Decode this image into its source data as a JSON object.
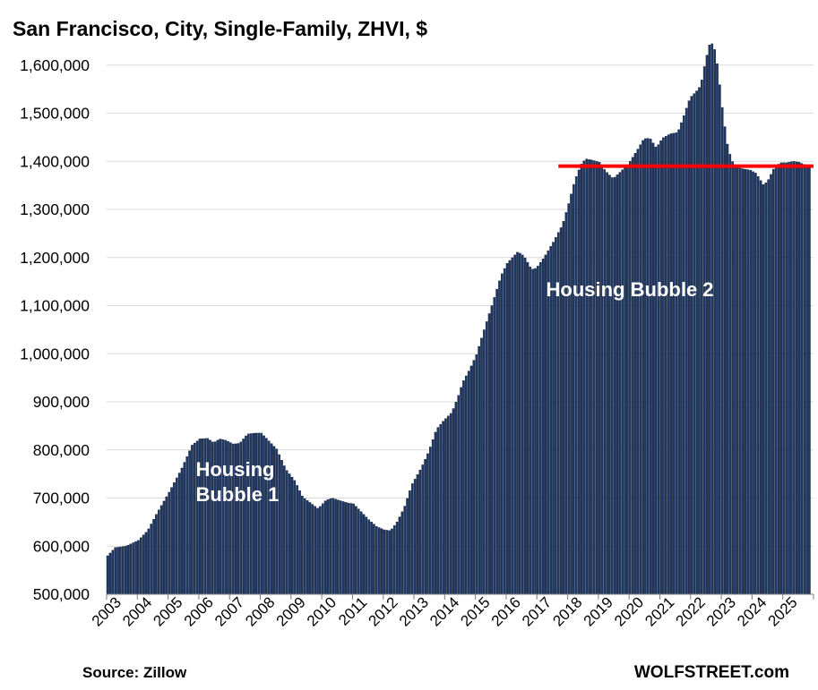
{
  "chart_data": {
    "type": "bar",
    "title": "San Francisco, City, Single-Family, ZHVI, $",
    "ylim": [
      500000,
      1650000
    ],
    "yticks": [
      "500,000",
      "600,000",
      "700,000",
      "800,000",
      "900,000",
      "1,000,000",
      "1,100,000",
      "1,200,000",
      "1,300,000",
      "1,400,000",
      "1,500,000",
      "1,600,000"
    ],
    "ytick_values": [
      500000,
      600000,
      700000,
      800000,
      900000,
      1000000,
      1100000,
      1200000,
      1300000,
      1400000,
      1500000,
      1600000
    ],
    "xticks": [
      "2003",
      "2004",
      "2005",
      "2006",
      "2007",
      "2008",
      "2009",
      "2010",
      "2011",
      "2012",
      "2013",
      "2014",
      "2015",
      "2016",
      "2017",
      "2018",
      "2019",
      "2020",
      "2021",
      "2022",
      "2023",
      "2024",
      "2025"
    ],
    "grid": true,
    "legend": "none",
    "bar_color": "#1f3864",
    "reference_line": {
      "value": 1390000,
      "color": "#ff0000",
      "from_year": 2017.7
    },
    "annotations": [
      {
        "text_lines": [
          "Housing",
          "Bubble 1"
        ],
        "x_year": 2005.9,
        "y": 720000
      },
      {
        "text_lines": [
          "Housing Bubble 2"
        ],
        "x_year": 2017.3,
        "y": 1120000
      }
    ],
    "anchors": [
      [
        2003.0,
        580000
      ],
      [
        2003.25,
        597000
      ],
      [
        2003.6,
        600000
      ],
      [
        2004.0,
        612000
      ],
      [
        2004.3,
        632000
      ],
      [
        2004.6,
        668000
      ],
      [
        2005.0,
        712000
      ],
      [
        2005.4,
        760000
      ],
      [
        2005.75,
        810000
      ],
      [
        2006.0,
        823000
      ],
      [
        2006.25,
        824000
      ],
      [
        2006.45,
        815000
      ],
      [
        2006.65,
        823000
      ],
      [
        2006.85,
        820000
      ],
      [
        2007.1,
        812000
      ],
      [
        2007.3,
        814000
      ],
      [
        2007.55,
        833000
      ],
      [
        2007.8,
        835000
      ],
      [
        2008.0,
        835000
      ],
      [
        2008.2,
        822000
      ],
      [
        2008.5,
        802000
      ],
      [
        2008.8,
        760000
      ],
      [
        2009.1,
        735000
      ],
      [
        2009.35,
        702000
      ],
      [
        2009.6,
        690000
      ],
      [
        2009.85,
        678000
      ],
      [
        2010.1,
        695000
      ],
      [
        2010.3,
        700000
      ],
      [
        2010.55,
        695000
      ],
      [
        2010.8,
        690000
      ],
      [
        2011.0,
        688000
      ],
      [
        2011.2,
        675000
      ],
      [
        2011.5,
        655000
      ],
      [
        2011.75,
        641000
      ],
      [
        2012.0,
        634000
      ],
      [
        2012.2,
        632000
      ],
      [
        2012.4,
        648000
      ],
      [
        2012.65,
        680000
      ],
      [
        2012.9,
        728000
      ],
      [
        2013.2,
        762000
      ],
      [
        2013.45,
        797000
      ],
      [
        2013.7,
        843000
      ],
      [
        2013.95,
        862000
      ],
      [
        2014.2,
        878000
      ],
      [
        2014.4,
        910000
      ],
      [
        2014.55,
        940000
      ],
      [
        2014.8,
        970000
      ],
      [
        2015.0,
        998000
      ],
      [
        2015.3,
        1060000
      ],
      [
        2015.55,
        1110000
      ],
      [
        2015.8,
        1162000
      ],
      [
        2016.0,
        1188000
      ],
      [
        2016.2,
        1202000
      ],
      [
        2016.35,
        1212000
      ],
      [
        2016.55,
        1203000
      ],
      [
        2016.8,
        1175000
      ],
      [
        2016.95,
        1178000
      ],
      [
        2017.2,
        1200000
      ],
      [
        2017.5,
        1232000
      ],
      [
        2017.8,
        1268000
      ],
      [
        2018.0,
        1312000
      ],
      [
        2018.2,
        1360000
      ],
      [
        2018.4,
        1393000
      ],
      [
        2018.55,
        1405000
      ],
      [
        2018.8,
        1402000
      ],
      [
        2019.0,
        1398000
      ],
      [
        2019.2,
        1380000
      ],
      [
        2019.45,
        1364000
      ],
      [
        2019.65,
        1376000
      ],
      [
        2019.95,
        1395000
      ],
      [
        2020.2,
        1420000
      ],
      [
        2020.45,
        1447000
      ],
      [
        2020.65,
        1448000
      ],
      [
        2020.85,
        1428000
      ],
      [
        2021.05,
        1448000
      ],
      [
        2021.3,
        1457000
      ],
      [
        2021.55,
        1460000
      ],
      [
        2021.75,
        1495000
      ],
      [
        2021.95,
        1532000
      ],
      [
        2022.15,
        1545000
      ],
      [
        2022.3,
        1558000
      ],
      [
        2022.45,
        1608000
      ],
      [
        2022.6,
        1646000
      ],
      [
        2022.72,
        1643000
      ],
      [
        2022.85,
        1597000
      ],
      [
        2023.0,
        1512000
      ],
      [
        2023.15,
        1440000
      ],
      [
        2023.3,
        1402000
      ],
      [
        2023.5,
        1387000
      ],
      [
        2023.7,
        1384000
      ],
      [
        2023.9,
        1382000
      ],
      [
        2024.1,
        1375000
      ],
      [
        2024.35,
        1350000
      ],
      [
        2024.5,
        1362000
      ],
      [
        2024.7,
        1388000
      ],
      [
        2024.9,
        1397000
      ],
      [
        2025.1,
        1397000
      ],
      [
        2025.3,
        1400000
      ],
      [
        2025.5,
        1398000
      ],
      [
        2025.75,
        1391000
      ],
      [
        2025.95,
        1386000
      ]
    ],
    "date_range": [
      "2003-01",
      "2025-11"
    ]
  },
  "footer": {
    "source": "Source: Zillow",
    "brand": "WOLFSTREET.com"
  }
}
